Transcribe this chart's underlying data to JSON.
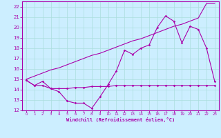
{
  "xlabel": "Windchill (Refroidissement éolien,°C)",
  "bg_color": "#cceeff",
  "grid_color": "#aadddd",
  "line_color": "#aa00aa",
  "xlim": [
    -0.5,
    23.5
  ],
  "ylim": [
    12,
    22.5
  ],
  "xticks": [
    0,
    1,
    2,
    3,
    4,
    5,
    6,
    7,
    8,
    9,
    10,
    11,
    12,
    13,
    14,
    15,
    16,
    17,
    18,
    19,
    20,
    21,
    22,
    23
  ],
  "yticks": [
    12,
    13,
    14,
    15,
    16,
    17,
    18,
    19,
    20,
    21,
    22
  ],
  "hours": [
    0,
    1,
    2,
    3,
    4,
    5,
    6,
    7,
    8,
    9,
    10,
    11,
    12,
    13,
    14,
    15,
    16,
    17,
    18,
    19,
    20,
    21,
    22,
    23
  ],
  "temp_line": [
    14.9,
    14.4,
    14.4,
    14.1,
    14.1,
    14.1,
    14.2,
    14.2,
    14.3,
    14.3,
    14.3,
    14.4,
    14.4,
    14.4,
    14.4,
    14.4,
    14.4,
    14.4,
    14.4,
    14.4,
    14.4,
    14.4,
    14.4,
    14.4
  ],
  "windchill_line": [
    14.9,
    14.4,
    14.8,
    14.1,
    13.8,
    12.9,
    12.7,
    12.7,
    12.2,
    13.3,
    14.5,
    15.8,
    17.8,
    17.4,
    18.0,
    18.3,
    20.0,
    21.1,
    20.6,
    18.5,
    20.1,
    19.8,
    18.0,
    14.8
  ],
  "linear_line": [
    15.0,
    15.3,
    15.6,
    15.9,
    16.1,
    16.4,
    16.7,
    17.0,
    17.3,
    17.5,
    17.8,
    18.1,
    18.4,
    18.7,
    18.9,
    19.2,
    19.5,
    19.8,
    20.1,
    20.3,
    20.6,
    20.9,
    22.3,
    22.3
  ]
}
